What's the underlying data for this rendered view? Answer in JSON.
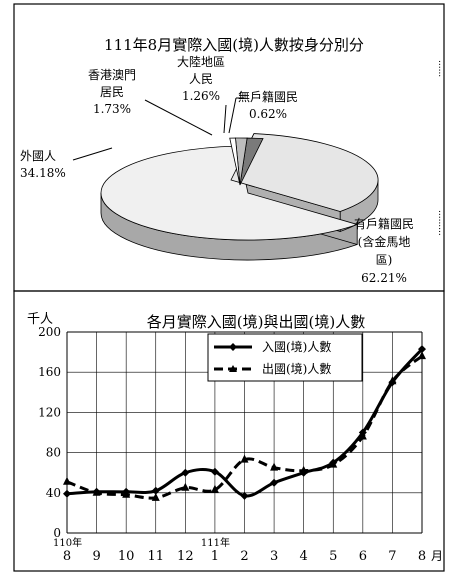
{
  "side_marks": {
    "top": "......",
    "bottom": "........."
  },
  "chart_data": [
    {
      "type": "pie",
      "title": "111年8月實際入國(境)人數按身分別分",
      "slices": [
        {
          "label": "有戶籍國民(含金馬地區)",
          "label_lines": [
            "有戶籍國民",
            "(含金馬地",
            "區)"
          ],
          "value": 62.21,
          "value_text": "62.21%",
          "color": "#f0f0f0"
        },
        {
          "label": "外國人",
          "label_lines": [
            "外國人"
          ],
          "value": 34.18,
          "value_text": "34.18%",
          "color": "#e6e6e6"
        },
        {
          "label": "香港澳門居民",
          "label_lines": [
            "香港澳門",
            "居民"
          ],
          "value": 1.73,
          "value_text": "1.73%",
          "color": "#7a7a7a"
        },
        {
          "label": "大陸地區人民",
          "label_lines": [
            "大陸地區",
            "人民"
          ],
          "value": 1.26,
          "value_text": "1.26%",
          "color": "#bdbdbd"
        },
        {
          "label": "無戶籍國民",
          "label_lines": [
            "無戶籍國民"
          ],
          "value": 0.62,
          "value_text": "0.62%",
          "color": "#ffffff"
        }
      ]
    },
    {
      "type": "line",
      "title": "各月實際入國(境)與出國(境)人數",
      "ylabel": "千人",
      "ylim": [
        0,
        200
      ],
      "yticks": [
        0,
        40,
        80,
        120,
        160,
        200
      ],
      "x": [
        "8",
        "9",
        "10",
        "11",
        "12",
        "1",
        "2",
        "3",
        "4",
        "5",
        "6",
        "7",
        "8"
      ],
      "x_year_marks": [
        {
          "index": 0,
          "text": "110年"
        },
        {
          "index": 5,
          "text": "111年"
        }
      ],
      "x_unit": "月",
      "legend": "top-right",
      "series": [
        {
          "name": "入國(境)人數",
          "style": "solid",
          "values": [
            39,
            41,
            41,
            42,
            60,
            61,
            37,
            50,
            60,
            70,
            100,
            150,
            183
          ]
        },
        {
          "name": "出國(境)人數",
          "style": "dashed",
          "values": [
            51,
            40,
            38,
            35,
            45,
            43,
            73,
            65,
            62,
            68,
            96,
            151,
            176
          ]
        }
      ]
    }
  ]
}
